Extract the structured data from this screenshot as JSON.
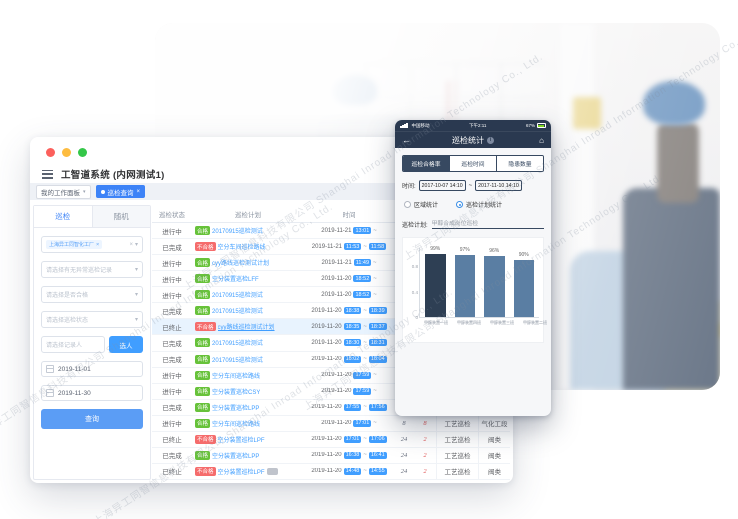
{
  "watermark": {
    "text": "上海异工同智信息科技有限公司 Shanghai Inroad Information Technology Co., Ltd."
  },
  "desktop": {
    "title": "工智道系统 (内网测试1)",
    "workspace_tab": "我的工作面板",
    "active_tab": "巡检查询",
    "sidebar": {
      "tab_inspection": "巡检",
      "tab_random": "随机",
      "factory_tag": "上海异工同智化工厂",
      "selects": [
        "请选择有无异常巡检记录",
        "请选择是否合格",
        "请选择巡检状态"
      ],
      "person_placeholder": "请选择记录人",
      "person_button": "选人",
      "date_start": "2019-11-01",
      "date_end": "2019-11-30",
      "search_button": "查询"
    },
    "table": {
      "headers": [
        "巡检状态",
        "巡检计划",
        "时间",
        "编写"
      ],
      "rows": [
        {
          "status": "进行中",
          "result": "合格",
          "plan": "20170915巡检测试",
          "date": "2019-11-21",
          "start": "13:01",
          "end": "",
          "count": "4",
          "issues": "",
          "type": "",
          "location": "",
          "highlight": false,
          "underline": false,
          "gray_badge": false
        },
        {
          "status": "已完成",
          "result": "不合格",
          "plan": "空分车间巡检路线",
          "date": "2019-11-21",
          "start": "11:53",
          "end": "11:58",
          "count": "24",
          "issues": "",
          "type": "",
          "location": "",
          "highlight": false,
          "underline": false,
          "gray_badge": false
        },
        {
          "status": "进行中",
          "result": "合格",
          "plan": "cyy路线巡检测试计划",
          "date": "2019-11-21",
          "start": "11:49",
          "end": "",
          "count": "4",
          "issues": "",
          "type": "",
          "location": "",
          "highlight": false,
          "underline": false,
          "gray_badge": false
        },
        {
          "status": "进行中",
          "result": "合格",
          "plan": "空分装置巡检LFF",
          "date": "2019-11-20",
          "start": "18:52",
          "end": "",
          "count": "8",
          "issues": "",
          "type": "",
          "location": "",
          "highlight": false,
          "underline": false,
          "gray_badge": false
        },
        {
          "status": "进行中",
          "result": "合格",
          "plan": "20170915巡检测试",
          "date": "2019-11-20",
          "start": "18:52",
          "end": "",
          "count": "4",
          "issues": "",
          "type": "",
          "location": "",
          "highlight": false,
          "underline": false,
          "gray_badge": false
        },
        {
          "status": "已完成",
          "result": "合格",
          "plan": "20170915巡检测试",
          "date": "2019-11-20",
          "start": "18:38",
          "end": "18:39",
          "count": "24",
          "issues": "",
          "type": "",
          "location": "",
          "highlight": false,
          "underline": false,
          "gray_badge": false
        },
        {
          "status": "已终止",
          "result": "不合格",
          "plan": "cyy路线巡检测试计划",
          "date": "2019-11-20",
          "start": "18:35",
          "end": "18:37",
          "count": "24",
          "issues": "",
          "type": "",
          "location": "",
          "highlight": true,
          "underline": true,
          "gray_badge": false
        },
        {
          "status": "已完成",
          "result": "合格",
          "plan": "20170915巡检测试",
          "date": "2019-11-20",
          "start": "18:30",
          "end": "18:31",
          "count": "24",
          "issues": "",
          "type": "",
          "location": "",
          "highlight": false,
          "underline": false,
          "gray_badge": false
        },
        {
          "status": "已完成",
          "result": "合格",
          "plan": "20170915巡检测试",
          "date": "2019-11-20",
          "start": "18:02",
          "end": "18:04",
          "count": "24",
          "issues": "",
          "type": "",
          "location": "",
          "highlight": false,
          "underline": false,
          "gray_badge": false
        },
        {
          "status": "进行中",
          "result": "合格",
          "plan": "空分车间巡检路线",
          "date": "2019-11-20",
          "start": "17:59",
          "end": "",
          "count": "4",
          "issues": "",
          "type": "",
          "location": "",
          "highlight": false,
          "underline": false,
          "gray_badge": false
        },
        {
          "status": "进行中",
          "result": "合格",
          "plan": "空分装置巡检CSY",
          "date": "2019-11-20",
          "start": "17:59",
          "end": "",
          "count": "4",
          "issues": "",
          "type": "",
          "location": "",
          "highlight": false,
          "underline": false,
          "gray_badge": false
        },
        {
          "status": "已完成",
          "result": "合格",
          "plan": "空分装置巡检LPP",
          "date": "2019-11-20",
          "start": "17:55",
          "end": "17:56",
          "count": "24",
          "issues": "2",
          "type": "工艺巡检",
          "location": "阀类",
          "highlight": false,
          "underline": false,
          "gray_badge": false
        },
        {
          "status": "进行中",
          "result": "合格",
          "plan": "空分车间巡检路线",
          "date": "2019-11-20",
          "start": "17:01",
          "end": "",
          "count": "8",
          "issues": "8",
          "type": "工艺巡检",
          "location": "气化工段",
          "highlight": false,
          "underline": false,
          "gray_badge": false
        },
        {
          "status": "已终止",
          "result": "不合格",
          "plan": "空分装置巡检LPF",
          "date": "2019-11-20",
          "start": "17:01",
          "end": "17:06",
          "count": "24",
          "issues": "2",
          "type": "工艺巡检",
          "location": "阀类",
          "highlight": false,
          "underline": false,
          "gray_badge": false
        },
        {
          "status": "已完成",
          "result": "合格",
          "plan": "空分装置巡检LPP",
          "date": "2019-11-20",
          "start": "16:38",
          "end": "16:41",
          "count": "24",
          "issues": "2",
          "type": "工艺巡检",
          "location": "阀类",
          "highlight": false,
          "underline": false,
          "gray_badge": false
        },
        {
          "status": "已终止",
          "result": "不合格",
          "plan": "空分装置巡检LPF",
          "date": "2019-11-20",
          "start": "14:48",
          "end": "14:55",
          "count": "24",
          "issues": "2",
          "type": "工艺巡检",
          "location": "阀类",
          "highlight": false,
          "underline": false,
          "gray_badge": true
        }
      ]
    }
  },
  "phone": {
    "status": {
      "carrier": "中国移动",
      "time": "下午2:11",
      "battery": "67%"
    },
    "nav_title": "巡检统计",
    "tabs": [
      "巡检合格率",
      "巡检时间",
      "隐患数量"
    ],
    "active_tab_index": 0,
    "time_label": "时间:",
    "time_from": "2017-10-07 14:10",
    "time_tilde": "~",
    "time_to": "2017-11-10 14:10",
    "radio_area": "区域统计",
    "radio_plan": "巡检计划统计",
    "selected_radio": "plan",
    "plan_label": "巡检计划:",
    "plan_value": "甲醇合成岗位巡检"
  },
  "chart_data": {
    "type": "bar",
    "title": "巡检合格率",
    "categories": [
      "甲醇装置一班",
      "甲醇装置四班",
      "甲醇装置三班",
      "甲醇装置二班"
    ],
    "values": [
      0.99,
      0.97,
      0.96,
      0.9
    ],
    "bar_labels": [
      "99%",
      "97%",
      "96%",
      "90%"
    ],
    "xlabel": "",
    "ylabel": "",
    "ylim": [
      0,
      1.1
    ],
    "yticks": [
      0,
      0.4,
      0.8
    ],
    "grid": false,
    "legend_position": "none",
    "bar_colors": [
      "#2e3f54",
      "#5a7ea3",
      "#5a7ea3",
      "#5a7ea3"
    ]
  }
}
